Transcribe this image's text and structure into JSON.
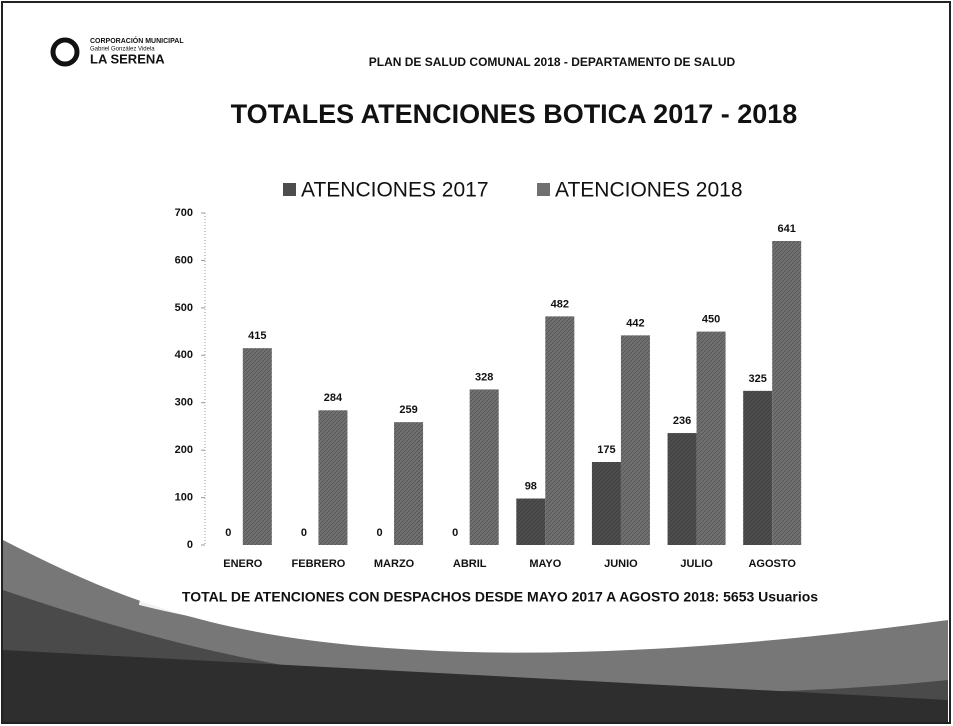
{
  "header": {
    "org_line1": "CORPORACIÓN MUNICIPAL",
    "org_line2": "Gabriel González Videla",
    "org_name": "LA SERENA",
    "subtitle": "PLAN DE SALUD COMUNAL 2018 - DEPARTAMENTO DE SALUD"
  },
  "chart_data": {
    "type": "bar",
    "title": "TOTALES ATENCIONES BOTICA 2017 - 2018",
    "categories": [
      "ENERO",
      "FEBRERO",
      "MARZO",
      "ABRIL",
      "MAYO",
      "JUNIO",
      "JULIO",
      "AGOSTO"
    ],
    "series": [
      {
        "name": "ATENCIONES 2017",
        "color": "#4d4d4d",
        "values": [
          0,
          0,
          0,
          0,
          98,
          175,
          236,
          325
        ]
      },
      {
        "name": "ATENCIONES 2018",
        "color": "#707070",
        "values": [
          415,
          284,
          259,
          328,
          482,
          442,
          450,
          641
        ]
      }
    ],
    "ylim": [
      0,
      700
    ],
    "yticks": [
      0,
      100,
      200,
      300,
      400,
      500,
      600,
      700
    ],
    "grid": false,
    "legend": "top",
    "annotation": "TOTAL DE ATENCIONES CON DESPACHOS DESDE MAYO 2017 A AGOSTO 2018: 5653 Usuarios"
  }
}
